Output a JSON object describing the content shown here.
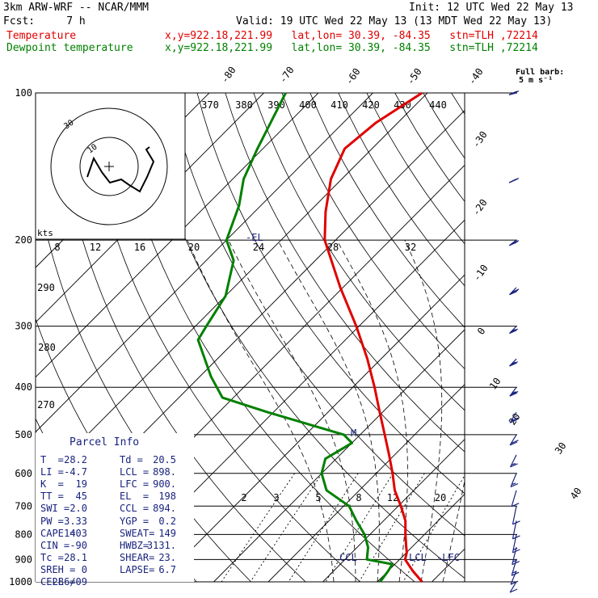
{
  "header": {
    "model": "3km ARW-WRF -- NCAR/MMM",
    "init": "Init: 12 UTC Wed 22 May 13",
    "fcst": "Fcst:     7 h",
    "valid": "Valid: 19 UTC Wed 22 May 13 (13 MDT Wed 22 May 13)",
    "line_temperature": {
      "name": "Temperature",
      "info": "x,y=922.18,221.99   lat,lon= 30.39, -84.35   stn=TLH ,72214",
      "color": "#e00000"
    },
    "line_dewpoint": {
      "name": "Dewpoint temperature",
      "info": "x,y=922.18,221.99   lat,lon= 30.39, -84.35   stn=TLH ,72214",
      "color": "#008000"
    }
  },
  "barb_legend": {
    "title": "Full barb:",
    "value": "5 m s⁻¹"
  },
  "hodograph": {
    "units": "kts",
    "ring_labels": [
      "10",
      "30"
    ]
  },
  "parcel_info": {
    "title": "Parcel Info",
    "rows": [
      [
        "T  =",
        "28.2",
        "Td =",
        "20.5"
      ],
      [
        "LI =",
        "-4.7",
        "LCL =",
        "898."
      ],
      [
        "K  =",
        "19",
        "LFC =",
        "900."
      ],
      [
        "TT =",
        "45",
        "EL  =",
        "198"
      ],
      [
        "SWI =",
        "2.0",
        "CCL =",
        "894."
      ],
      [
        "PW =",
        "3.33",
        "YGP =",
        "0.2"
      ],
      [
        "CAPE =",
        "1403",
        "SWEAT=",
        "149"
      ],
      [
        "CIN =",
        "-90",
        "HWBZ=",
        "3131."
      ],
      [
        "Tc =",
        "28.1",
        "SHEAR=",
        "23."
      ],
      [
        "SREH =",
        "0",
        "LAPSE=",
        "6.7"
      ],
      [
        "CELL =",
        "286/09",
        "",
        ""
      ]
    ]
  },
  "levels": {
    "el_label": "-EL",
    "lcl_label": "LCL",
    "lfc_label": "-LFC",
    "ccl_label": "CCL",
    "m_label": "M"
  },
  "chart_data": {
    "type": "skew-t",
    "pressure_axis": {
      "labels": [
        "100",
        "200",
        "300",
        "400",
        "500",
        "600",
        "700",
        "800",
        "900",
        "1000"
      ],
      "range_hpa": [
        100,
        1000
      ],
      "scale": "log"
    },
    "isotherm_labels": [
      "-80",
      "-70",
      "-60",
      "-50",
      "-40",
      "-30",
      "-20",
      "-10",
      "0",
      "10",
      "20",
      "30",
      "40"
    ],
    "dry_adiabat_labels": [
      "370",
      "380",
      "390",
      "400",
      "410",
      "420",
      "430",
      "440",
      "290",
      "280",
      "270"
    ],
    "mixing_ratio_labels": [
      "2",
      "3",
      "5",
      "8",
      "12",
      "20"
    ],
    "hodograph_speed_labels": [
      "8",
      "12",
      "16",
      "20",
      "24",
      "28",
      "32"
    ],
    "temperature_c": [
      [
        1000,
        28.2
      ],
      [
        950,
        24.5
      ],
      [
        900,
        21
      ],
      [
        870,
        20
      ],
      [
        850,
        19
      ],
      [
        800,
        16.5
      ],
      [
        750,
        14
      ],
      [
        700,
        10.5
      ],
      [
        650,
        6.5
      ],
      [
        600,
        3
      ],
      [
        550,
        -1
      ],
      [
        500,
        -5.5
      ],
      [
        450,
        -10.5
      ],
      [
        400,
        -16
      ],
      [
        350,
        -22.5
      ],
      [
        300,
        -30.5
      ],
      [
        250,
        -40.5
      ],
      [
        200,
        -52
      ],
      [
        175,
        -57
      ],
      [
        150,
        -62
      ],
      [
        130,
        -65
      ],
      [
        115,
        -64
      ],
      [
        100,
        -61
      ]
    ],
    "dewpoint_c": [
      [
        1000,
        20.5
      ],
      [
        950,
        20
      ],
      [
        920,
        19.5
      ],
      [
        900,
        14
      ],
      [
        850,
        12
      ],
      [
        800,
        9
      ],
      [
        750,
        5
      ],
      [
        700,
        1
      ],
      [
        650,
        -6
      ],
      [
        600,
        -10
      ],
      [
        560,
        -12
      ],
      [
        520,
        -10
      ],
      [
        500,
        -13
      ],
      [
        450,
        -31
      ],
      [
        420,
        -42
      ],
      [
        380,
        -48
      ],
      [
        320,
        -57
      ],
      [
        300,
        -58
      ],
      [
        260,
        -60
      ],
      [
        220,
        -65
      ],
      [
        200,
        -70
      ],
      [
        170,
        -74
      ],
      [
        150,
        -78
      ],
      [
        130,
        -81
      ],
      [
        100,
        -86
      ]
    ],
    "wind_barbs": [
      {
        "p": 1000,
        "dir": 240,
        "speed_kts": 10
      },
      {
        "p": 950,
        "dir": 230,
        "speed_kts": 12
      },
      {
        "p": 900,
        "dir": 220,
        "speed_kts": 15
      },
      {
        "p": 850,
        "dir": 215,
        "speed_kts": 15
      },
      {
        "p": 800,
        "dir": 210,
        "speed_kts": 15
      },
      {
        "p": 750,
        "dir": 210,
        "speed_kts": 12
      },
      {
        "p": 700,
        "dir": 210,
        "speed_kts": 12
      },
      {
        "p": 650,
        "dir": 220,
        "speed_kts": 12
      },
      {
        "p": 600,
        "dir": 230,
        "speed_kts": 15
      },
      {
        "p": 550,
        "dir": 235,
        "speed_kts": 18
      },
      {
        "p": 500,
        "dir": 240,
        "speed_kts": 20
      },
      {
        "p": 450,
        "dir": 240,
        "speed_kts": 22
      },
      {
        "p": 400,
        "dir": 245,
        "speed_kts": 25
      },
      {
        "p": 350,
        "dir": 250,
        "speed_kts": 25
      },
      {
        "p": 300,
        "dir": 250,
        "speed_kts": 28
      },
      {
        "p": 250,
        "dir": 250,
        "speed_kts": 30
      },
      {
        "p": 200,
        "dir": 255,
        "speed_kts": 30
      },
      {
        "p": 150,
        "dir": 260,
        "speed_kts": 32
      },
      {
        "p": 100,
        "dir": 265,
        "speed_kts": 32
      }
    ]
  }
}
